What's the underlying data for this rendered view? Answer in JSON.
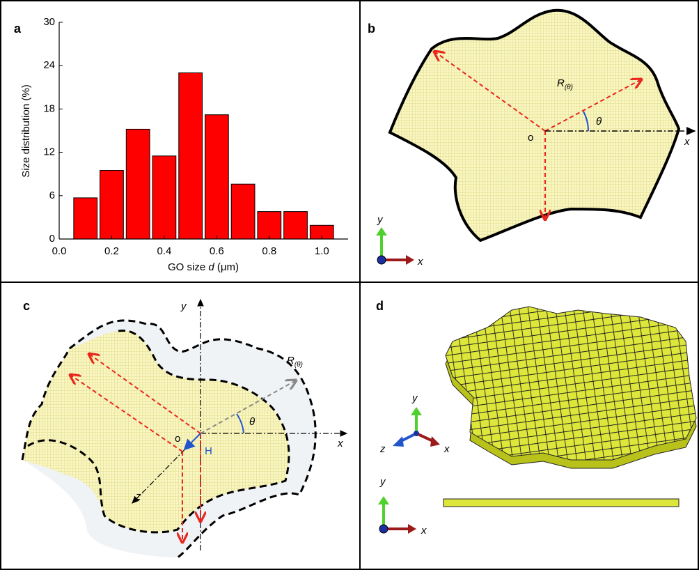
{
  "chart_data": {
    "type": "histogram",
    "ylabel": "Size distribution (%)",
    "xlabel": [
      "GO size ",
      "d",
      " (μm)"
    ],
    "bins": [
      0.05,
      0.15,
      0.25,
      0.35,
      0.45,
      0.55,
      0.65,
      0.75,
      0.85,
      0.95,
      1.05
    ],
    "values": [
      5.7,
      9.5,
      15.2,
      11.5,
      23,
      17.2,
      7.6,
      3.8,
      3.8,
      1.9
    ],
    "color": "#ff0000",
    "xlim": [
      0,
      1.1
    ],
    "ylim": [
      0,
      30
    ],
    "xticks": [
      {
        "value": 0,
        "label": "0.0"
      },
      0.2,
      0.4,
      0.6,
      0.8,
      {
        "value": 1,
        "label": "1.0"
      }
    ],
    "yticks": [
      0,
      6,
      12,
      18,
      24,
      30
    ]
  },
  "panels": {
    "a": {
      "label": "a"
    },
    "b": {
      "label": "b",
      "radius": "R",
      "radius_sub": "(θ)",
      "angle": "θ",
      "origin": "o",
      "axis_x": "x",
      "triad_y": "y",
      "triad_x": "x"
    },
    "c": {
      "label": "c",
      "axis_y": "y",
      "axis_x": "x",
      "axis_z": "z",
      "radius": "R",
      "radius_sub": "(θ)",
      "angle": "θ",
      "origin": "o",
      "thickness": "H"
    },
    "d": {
      "label": "d",
      "triad_y": "y",
      "triad_x": "x",
      "triad_z": "z",
      "side_y": "y",
      "side_x": "x"
    }
  }
}
